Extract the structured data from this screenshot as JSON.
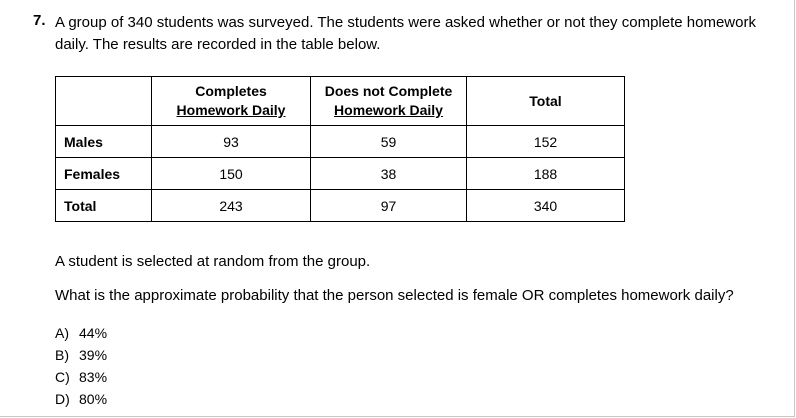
{
  "question": {
    "number": "7.",
    "prompt_line1": "A group of 340 students was surveyed. The students were asked whether or not they complete homework",
    "prompt_line2": "daily. The results are recorded in the table below."
  },
  "table": {
    "headers": {
      "col1_line1": "Completes",
      "col1_line2": "Homework Daily",
      "col2_line1": "Does not Complete",
      "col2_line2": "Homework Daily",
      "col3": "Total"
    },
    "rows": [
      {
        "label": "Males",
        "completes": "93",
        "does_not": "59",
        "total": "152"
      },
      {
        "label": "Females",
        "completes": "150",
        "does_not": "38",
        "total": "188"
      },
      {
        "label": "Total",
        "completes": "243",
        "does_not": "97",
        "total": "340"
      }
    ]
  },
  "statement1": "A student is selected at random from the group.",
  "statement2": "What is the approximate probability that the person selected is female OR completes homework daily?",
  "choices": [
    {
      "letter": "A)",
      "value": "44%"
    },
    {
      "letter": "B)",
      "value": "39%"
    },
    {
      "letter": "C)",
      "value": "83%"
    },
    {
      "letter": "D)",
      "value": "80%"
    }
  ]
}
